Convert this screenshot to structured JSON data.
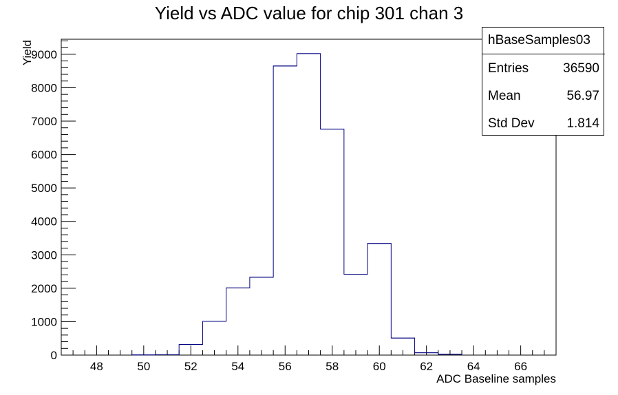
{
  "chart_data": {
    "type": "bar",
    "title": "Yield vs ADC value for chip 301 chan 3",
    "xlabel": "ADC Baseline samples",
    "ylabel": "Yield",
    "xlim": [
      46.5,
      67.5
    ],
    "ylim": [
      0,
      9450
    ],
    "xticks": [
      48,
      50,
      52,
      54,
      56,
      58,
      60,
      62,
      64,
      66
    ],
    "yticks": [
      0,
      1000,
      2000,
      3000,
      4000,
      5000,
      6000,
      7000,
      8000,
      9000
    ],
    "bins": [
      {
        "low": 49.5,
        "high": 50.5,
        "value": 5
      },
      {
        "low": 50.5,
        "high": 51.5,
        "value": 10
      },
      {
        "low": 51.5,
        "high": 52.5,
        "value": 320
      },
      {
        "low": 52.5,
        "high": 53.5,
        "value": 1010
      },
      {
        "low": 53.5,
        "high": 54.5,
        "value": 2010
      },
      {
        "low": 54.5,
        "high": 55.5,
        "value": 2330
      },
      {
        "low": 55.5,
        "high": 56.5,
        "value": 8650
      },
      {
        "low": 56.5,
        "high": 57.5,
        "value": 9020
      },
      {
        "low": 57.5,
        "high": 58.5,
        "value": 6760
      },
      {
        "low": 58.5,
        "high": 59.5,
        "value": 2420
      },
      {
        "low": 59.5,
        "high": 60.5,
        "value": 3340
      },
      {
        "low": 60.5,
        "high": 61.5,
        "value": 510
      },
      {
        "low": 61.5,
        "high": 62.5,
        "value": 70
      },
      {
        "low": 62.5,
        "high": 63.5,
        "value": 25
      }
    ],
    "line_color": "#000080",
    "legend_position": "top-right"
  },
  "stats": {
    "name": "hBaseSamples03",
    "rows": [
      {
        "label": "Entries",
        "value": "36590"
      },
      {
        "label": "Mean",
        "value": "56.97"
      },
      {
        "label": "Std Dev",
        "value": "1.814"
      }
    ]
  }
}
